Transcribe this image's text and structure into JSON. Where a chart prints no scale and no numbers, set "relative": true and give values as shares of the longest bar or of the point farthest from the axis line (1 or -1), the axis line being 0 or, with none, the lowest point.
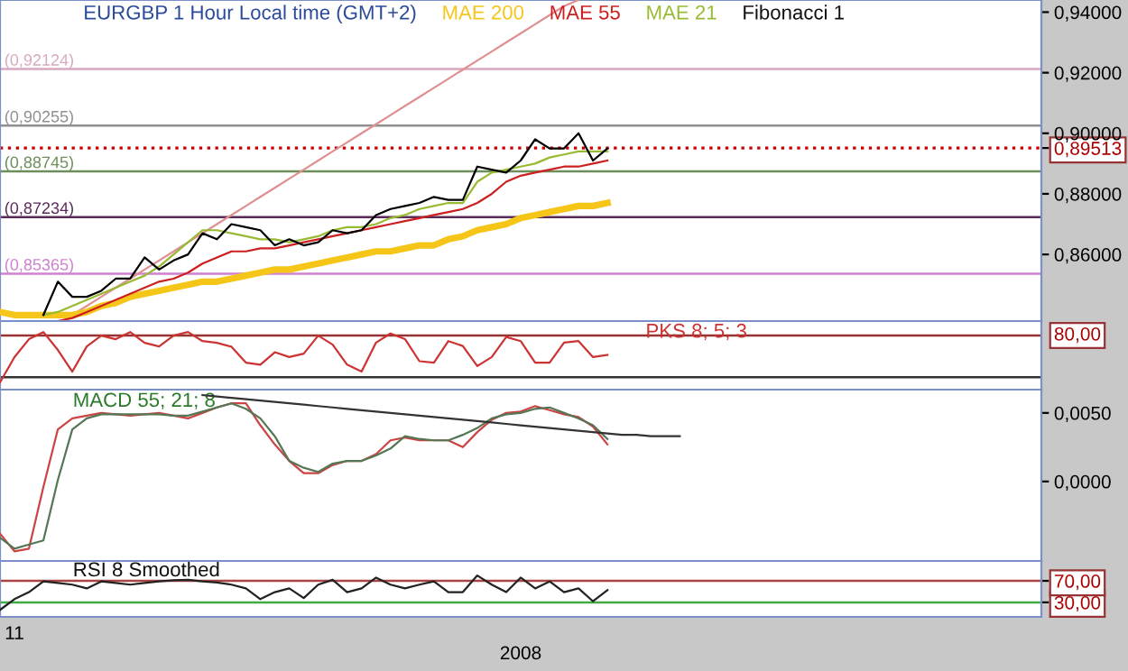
{
  "chart_data": [
    {
      "type": "line",
      "title": "EURGBP 1 Hour Local time (GMT+2)",
      "annotations": [
        "Fibonacci 1"
      ],
      "tick_labels": "y",
      "grid": false,
      "categories": [
        null,
        null,
        null,
        null,
        null,
        null,
        null,
        null,
        null,
        null,
        null,
        null,
        null,
        null,
        null,
        null,
        null,
        null,
        null,
        null,
        null,
        null,
        null,
        null,
        null,
        null,
        null,
        null,
        null,
        null,
        null,
        null,
        null,
        null,
        null,
        null,
        null,
        null,
        null,
        null,
        null,
        null,
        null,
        null,
        null,
        null,
        null,
        null,
        null,
        null,
        null,
        null,
        null,
        null,
        null,
        null,
        null,
        null,
        null,
        null,
        null,
        null,
        null,
        null,
        null,
        null,
        null,
        null,
        null,
        null,
        null,
        null,
        null
      ],
      "ylim": [
        0.838,
        0.944
      ],
      "yticks": [
        {
          "value": 0.86,
          "label": "0,86000"
        },
        {
          "value": 0.88,
          "label": "0,88000"
        },
        {
          "value": 0.89513,
          "label": "0,89513"
        },
        {
          "value": 0.9,
          "label": "0,90000"
        },
        {
          "value": 0.92,
          "label": "0,92000"
        },
        {
          "value": 0.94,
          "label": "0,94000"
        }
      ],
      "ref_lines": [
        {
          "axis": "y",
          "value": 0.92124,
          "label": "(0,92124)",
          "color": "#d8a8c0"
        },
        {
          "axis": "y",
          "value": 0.90255,
          "label": "(0,90255)",
          "color": "#909090"
        },
        {
          "axis": "y",
          "value": 0.88745,
          "label": "(0,88745)",
          "color": "#6b8e5a"
        },
        {
          "axis": "y",
          "value": 0.87234,
          "label": "(0,87234)",
          "color": "#5a2a5a"
        },
        {
          "axis": "y",
          "value": 0.85365,
          "label": "(0,85365)",
          "color": "#d080d0"
        },
        {
          "axis": "y",
          "value": 0.89513,
          "color": "#cc0000",
          "line_style": "dotted"
        }
      ],
      "series": [
        {
          "color": "#e09090",
          "values": [
            null,
            null,
            null,
            null,
            null,
            0.84,
            0.843,
            0.846,
            0.849,
            0.852,
            0.855,
            0.858,
            0.861,
            0.864,
            0.867,
            0.87,
            0.873,
            0.876,
            0.879,
            0.882,
            0.885,
            0.888,
            0.891,
            0.894,
            0.897,
            0.9,
            0.903,
            0.906,
            0.909,
            0.912,
            0.915,
            0.918,
            0.921,
            0.924,
            0.927,
            0.93,
            0.933,
            0.936,
            0.939,
            0.942,
            0.944,
            null,
            null,
            null,
            null,
            null,
            null,
            null,
            null,
            null,
            null,
            null,
            null,
            null,
            null,
            null,
            null,
            null,
            null,
            null,
            null,
            null,
            null,
            null,
            null,
            null,
            null,
            null,
            null,
            null,
            null,
            null,
            null
          ]
        },
        {
          "name": "MAE 200",
          "color": "#f5c518",
          "values": [
            0.841,
            0.84,
            0.84,
            0.84,
            0.84,
            0.84,
            0.841,
            0.843,
            0.844,
            0.846,
            0.847,
            0.848,
            0.849,
            0.85,
            0.851,
            0.851,
            0.852,
            0.853,
            0.854,
            0.855,
            0.855,
            0.856,
            0.857,
            0.858,
            0.859,
            0.86,
            0.861,
            0.861,
            0.862,
            0.863,
            0.863,
            0.865,
            0.866,
            0.868,
            0.869,
            0.87,
            0.872,
            0.873,
            0.874,
            0.875,
            0.876,
            0.876,
            0.877,
            null,
            null,
            null,
            null,
            null,
            null,
            null,
            null,
            null,
            null,
            null,
            null,
            null,
            null,
            null,
            null,
            null,
            null,
            null,
            null,
            null,
            null,
            null,
            null,
            null,
            null,
            null,
            null,
            null,
            null
          ]
        },
        {
          "name": "MAE 55",
          "color": "#cc2020",
          "values": [
            null,
            null,
            null,
            null,
            0.838,
            0.839,
            0.841,
            0.843,
            0.845,
            0.847,
            0.849,
            0.851,
            0.852,
            0.854,
            0.857,
            0.859,
            0.861,
            0.861,
            0.862,
            0.862,
            0.863,
            0.864,
            0.865,
            0.866,
            0.867,
            0.868,
            0.869,
            0.87,
            0.871,
            0.872,
            0.873,
            0.874,
            0.875,
            0.877,
            0.88,
            0.884,
            0.886,
            0.887,
            0.888,
            0.889,
            0.889,
            0.89,
            0.891,
            null,
            null,
            null,
            null,
            null,
            null,
            null,
            null,
            null,
            null,
            null,
            null,
            null,
            null,
            null,
            null,
            null,
            null,
            null,
            null,
            null,
            null,
            null,
            null,
            null,
            null,
            null,
            null,
            null,
            null
          ]
        },
        {
          "name": "MAE 21",
          "color": "#99bb33",
          "values": [
            null,
            null,
            null,
            0.84,
            0.841,
            0.843,
            0.845,
            0.847,
            0.849,
            0.851,
            0.853,
            0.856,
            0.86,
            0.864,
            0.868,
            0.868,
            0.867,
            0.866,
            0.865,
            0.865,
            0.864,
            0.865,
            0.866,
            0.868,
            0.869,
            0.869,
            0.87,
            0.872,
            0.873,
            0.875,
            0.876,
            0.877,
            0.877,
            0.884,
            0.887,
            0.888,
            0.889,
            0.89,
            0.892,
            0.893,
            0.894,
            0.894,
            0.894,
            null,
            null,
            null,
            null,
            null,
            null,
            null,
            null,
            null,
            null,
            null,
            null,
            null,
            null,
            null,
            null,
            null,
            null,
            null,
            null,
            null,
            null,
            null,
            null,
            null,
            null,
            null,
            null,
            null,
            null
          ]
        },
        {
          "color": "#000000",
          "values": [
            null,
            null,
            null,
            0.84,
            0.851,
            0.846,
            0.846,
            0.848,
            0.852,
            0.852,
            0.859,
            0.855,
            0.858,
            0.86,
            0.867,
            0.865,
            0.87,
            0.869,
            0.868,
            0.863,
            0.865,
            0.863,
            0.864,
            0.868,
            0.867,
            0.868,
            0.873,
            0.875,
            0.876,
            0.877,
            0.879,
            0.878,
            0.878,
            0.889,
            0.888,
            0.887,
            0.891,
            0.898,
            0.895,
            0.895,
            0.9,
            0.891,
            0.895,
            null,
            null,
            null,
            null,
            null,
            null,
            null,
            null,
            null,
            null,
            null,
            null,
            null,
            null,
            null,
            null,
            null,
            null,
            null,
            null,
            null,
            null,
            null,
            null,
            null,
            null,
            null,
            null,
            null,
            null
          ]
        }
      ]
    },
    {
      "type": "line",
      "relative": true,
      "tick_labels": false,
      "grid": false,
      "categories": [
        null,
        null,
        null,
        null,
        null,
        null,
        null,
        null,
        null,
        null,
        null,
        null,
        null,
        null,
        null,
        null,
        null,
        null,
        null,
        null,
        null,
        null,
        null,
        null,
        null,
        null,
        null,
        null,
        null,
        null,
        null,
        null,
        null,
        null,
        null,
        null,
        null,
        null,
        null,
        null,
        null,
        null,
        null,
        null,
        null,
        null,
        null,
        null,
        null,
        null,
        null,
        null,
        null,
        null,
        null,
        null,
        null,
        null,
        null,
        null,
        null,
        null,
        null,
        null,
        null,
        null,
        null,
        null,
        null,
        null,
        null,
        null,
        null
      ],
      "annotations": [
        "80,00"
      ],
      "ref_lines": [
        {
          "axis": "y",
          "value": 0.938,
          "color": "#993333"
        },
        {
          "axis": "y",
          "value": 0.216,
          "color": "#333333"
        }
      ],
      "series": [
        {
          "name": "PKS 8; 5; 3",
          "color": "#cc3333",
          "values": [
            0.125,
            0.563,
            0.875,
            1,
            0.688,
            0.313,
            0.75,
            0.938,
            0.875,
            1,
            0.813,
            0.75,
            0.938,
            1,
            0.842,
            0.813,
            0.745,
            0.469,
            0.433,
            0.649,
            0.565,
            0.625,
            0.938,
            0.781,
            0.433,
            0.313,
            0.817,
            0.974,
            0.878,
            0.493,
            0.469,
            0.842,
            0.758,
            0.409,
            0.565,
            0.913,
            0.842,
            0.469,
            0.469,
            0.817,
            0.842,
            0.565,
            0.601,
            null,
            null,
            null,
            null,
            null,
            null,
            null,
            null,
            null,
            null,
            null,
            null,
            null,
            null,
            null,
            null,
            null,
            null,
            null,
            null,
            null,
            null,
            null,
            null,
            null,
            null,
            null,
            null,
            null,
            null
          ]
        }
      ]
    },
    {
      "type": "line",
      "title": "MACD 55; 21; 8",
      "tick_labels": "y",
      "grid": false,
      "categories": [
        null,
        null,
        null,
        null,
        null,
        null,
        null,
        null,
        null,
        null,
        null,
        null,
        null,
        null,
        null,
        null,
        null,
        null,
        null,
        null,
        null,
        null,
        null,
        null,
        null,
        null,
        null,
        null,
        null,
        null,
        null,
        null,
        null,
        null,
        null,
        null,
        null,
        null,
        null,
        null,
        null,
        null,
        null,
        null,
        null,
        null,
        null,
        null,
        null,
        null,
        null,
        null,
        null,
        null,
        null,
        null,
        null,
        null,
        null,
        null,
        null,
        null,
        null,
        null,
        null,
        null,
        null,
        null,
        null,
        null,
        null,
        null,
        null
      ],
      "ylim": [
        -0.0058,
        0.0067
      ],
      "yticks": [
        {
          "value": 0.0,
          "label": "0,0000"
        },
        {
          "value": 0.005,
          "label": "0,0050"
        }
      ],
      "series": [
        {
          "color": "#cc4444",
          "values": [
            -0.0038,
            -0.0051,
            -0.0049,
            -0.0004,
            0.0038,
            0.0046,
            0.0048,
            0.005,
            0.0049,
            0.0048,
            0.0049,
            0.005,
            0.0048,
            0.0046,
            0.005,
            0.0054,
            0.0057,
            0.0057,
            0.0041,
            0.0027,
            0.0015,
            0.0006,
            0.0006,
            0.0012,
            0.0015,
            0.0015,
            0.002,
            0.003,
            0.0032,
            0.003,
            0.003,
            0.003,
            0.0025,
            0.0036,
            0.0045,
            0.005,
            0.0051,
            0.0055,
            0.0052,
            0.0049,
            0.0047,
            0.004,
            0.0027,
            null,
            null,
            null,
            null,
            null,
            null,
            null,
            null,
            null,
            null,
            null,
            null,
            null,
            null,
            null,
            null,
            null,
            null,
            null,
            null,
            null,
            null,
            null,
            null,
            null,
            null,
            null,
            null,
            null,
            null
          ]
        },
        {
          "color": "#557755",
          "values": [
            -0.0041,
            -0.0049,
            -0.0046,
            -0.0043,
            0.0001,
            0.0038,
            0.0046,
            0.0049,
            0.0049,
            0.0049,
            0.0049,
            0.0049,
            0.0048,
            0.0048,
            0.0051,
            0.0054,
            0.0057,
            0.0053,
            0.0046,
            0.0033,
            0.0015,
            0.001,
            0.0007,
            0.0013,
            0.0015,
            0.0015,
            0.0019,
            0.0024,
            0.0033,
            0.0031,
            0.003,
            0.003,
            0.0034,
            0.0039,
            0.0046,
            0.0049,
            0.005,
            0.0053,
            0.0054,
            0.005,
            0.0046,
            0.0041,
            0.0031,
            null,
            null,
            null,
            null,
            null,
            null,
            null,
            null,
            null,
            null,
            null,
            null,
            null,
            null,
            null,
            null,
            null,
            null,
            null,
            null,
            null,
            null,
            null,
            null,
            null,
            null,
            null,
            null,
            null,
            null
          ]
        },
        {
          "color": "#333333",
          "values": [
            null,
            null,
            null,
            null,
            null,
            null,
            null,
            null,
            null,
            null,
            null,
            null,
            null,
            null,
            0.0063,
            0.0062,
            0.0061,
            0.006,
            0.0059,
            0.0058,
            0.0057,
            0.0056,
            0.0055,
            0.0054,
            0.0053,
            0.0052,
            0.0051,
            0.005,
            0.0049,
            0.0048,
            0.0047,
            0.0046,
            0.0045,
            0.0044,
            0.0043,
            0.0042,
            0.0041,
            0.004,
            0.0039,
            0.0038,
            0.0037,
            0.0036,
            0.0035,
            0.0034,
            0.0034,
            0.0033,
            0.0033,
            0.0033,
            null,
            null,
            null,
            null,
            null,
            null,
            null,
            null,
            null,
            null,
            null,
            null,
            null,
            null,
            null,
            null,
            null,
            null,
            null,
            null,
            null,
            null,
            null,
            null,
            null
          ]
        }
      ]
    },
    {
      "type": "line",
      "title": "RSI 8 Smoothed",
      "grid": false,
      "xlabel": "2008",
      "categories": [
        null,
        "11",
        null,
        null,
        null,
        null,
        null,
        null,
        null,
        null,
        null,
        null,
        null,
        null,
        null,
        null,
        null,
        null,
        null,
        null,
        null,
        null,
        null,
        null,
        null,
        null,
        null,
        null,
        null,
        null,
        null,
        null,
        null,
        null,
        null,
        null,
        null,
        null,
        null,
        null,
        null,
        null,
        null,
        null,
        null,
        null,
        null,
        null,
        null,
        null,
        null,
        null,
        null,
        null,
        null,
        null,
        null,
        null,
        null,
        null,
        null,
        null,
        null,
        null,
        null,
        null,
        null,
        null,
        null,
        null,
        null,
        null,
        null
      ],
      "ylim": [
        3,
        107
      ],
      "yticks": [
        {
          "value": 30,
          "label": "30,00"
        },
        {
          "value": 70,
          "label": "70,00"
        }
      ],
      "ref_lines": [
        {
          "axis": "y",
          "value": 70,
          "color": "#aa4444"
        },
        {
          "axis": "y",
          "value": 30,
          "color": "#44aa44"
        }
      ],
      "series": [
        {
          "color": "#222222",
          "values": [
            16,
            36,
            49,
            69,
            66,
            63,
            56,
            69,
            66,
            63,
            66,
            69,
            71,
            72,
            69,
            67,
            63,
            56,
            36,
            49,
            56,
            38,
            63,
            72,
            49,
            56,
            76,
            63,
            56,
            63,
            69,
            49,
            49,
            80,
            63,
            49,
            76,
            56,
            69,
            49,
            56,
            32,
            53,
            null,
            null,
            null,
            null,
            null,
            null,
            null,
            null,
            null,
            null,
            null,
            null,
            null,
            null,
            null,
            null,
            null,
            null,
            null,
            null,
            null,
            null,
            null,
            null,
            null,
            null,
            null,
            null,
            null,
            null
          ]
        }
      ]
    }
  ]
}
